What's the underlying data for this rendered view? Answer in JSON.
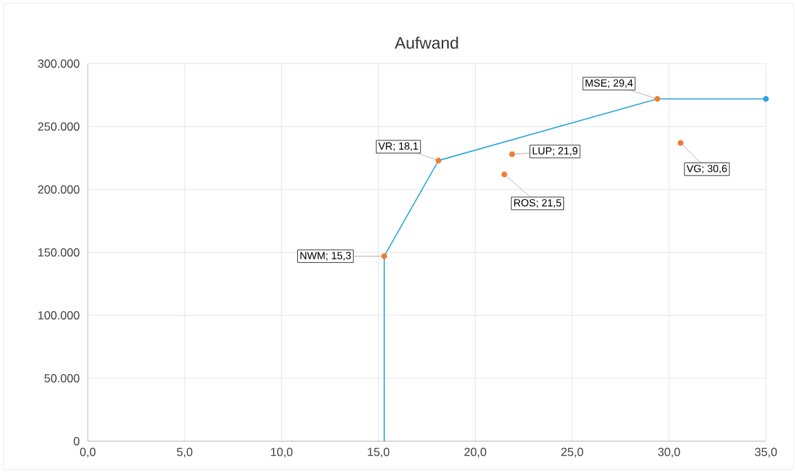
{
  "chart_data": {
    "type": "scatter",
    "title": "Aufwand",
    "xlim": [
      0,
      35
    ],
    "ylim": [
      0,
      300000
    ],
    "xticks": [
      {
        "value": 0,
        "label": "0,0"
      },
      {
        "value": 5,
        "label": "5,0"
      },
      {
        "value": 10,
        "label": "10,0"
      },
      {
        "value": 15,
        "label": "15,0"
      },
      {
        "value": 20,
        "label": "20,0"
      },
      {
        "value": 25,
        "label": "25,0"
      },
      {
        "value": 30,
        "label": "30,0"
      },
      {
        "value": 35,
        "label": "35,0"
      }
    ],
    "yticks": [
      0,
      {
        "value": 50000,
        "label": "50.000"
      },
      {
        "value": 100000,
        "label": "100.000"
      },
      {
        "value": 150000,
        "label": "150.000"
      },
      {
        "value": 200000,
        "label": "200.000"
      },
      {
        "value": 250000,
        "label": "250.000"
      },
      {
        "value": 300000,
        "label": "300.000"
      }
    ],
    "grid": true,
    "series": [
      {
        "type": "line",
        "marker": "none",
        "color": "#29a3dc",
        "x": [
          15.3,
          15.3,
          18.1,
          29.4,
          35
        ],
        "values": [
          0,
          147000,
          223000,
          272000,
          272000
        ]
      },
      {
        "marker": "circle",
        "color": "#ed7d31",
        "x": [
          15.3,
          18.1,
          21.9,
          21.5,
          29.4,
          30.6
        ],
        "values": [
          147000,
          223000,
          228000,
          212000,
          272000,
          237000
        ]
      },
      {
        "marker": "circle",
        "color": "#29a3dc",
        "x": [
          35
        ],
        "values": [
          272000
        ]
      }
    ],
    "annotations": [
      {
        "text": "NWM; 15,3",
        "x": 15.3,
        "y": 147000
      },
      {
        "text": "VR; 18,1",
        "x": 18.1,
        "y": 223000
      },
      {
        "text": "LUP; 21,9",
        "x": 21.9,
        "y": 228000
      },
      {
        "text": "ROS; 21,5",
        "x": 21.5,
        "y": 212000
      },
      {
        "text": "MSE; 29,4",
        "x": 29.4,
        "y": 272000
      },
      {
        "text": "VG; 30,6",
        "x": 30.6,
        "y": 237000
      }
    ]
  }
}
